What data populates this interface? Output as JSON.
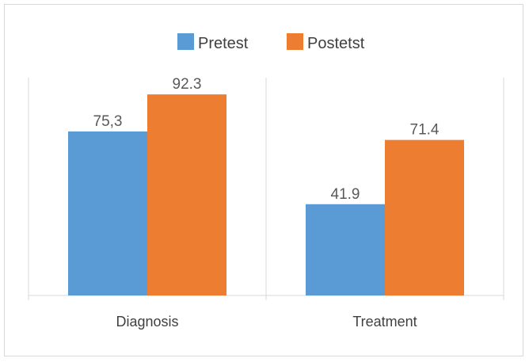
{
  "chart_data": {
    "type": "bar",
    "categories": [
      "Diagnosis",
      "Treatment"
    ],
    "series": [
      {
        "name": "Pretest",
        "values": [
          75.3,
          41.9
        ],
        "labels": [
          "75,3",
          "41.9"
        ],
        "color": "#5b9bd5"
      },
      {
        "name": "Postetst",
        "values": [
          92.3,
          71.4
        ],
        "labels": [
          "92.3",
          "71.4"
        ],
        "color": "#ed7d31"
      }
    ],
    "ylim": [
      0,
      100
    ],
    "grid": false,
    "legend_position": "top",
    "colors": {
      "axis": "#d9d9d9",
      "text": "#595959"
    }
  }
}
